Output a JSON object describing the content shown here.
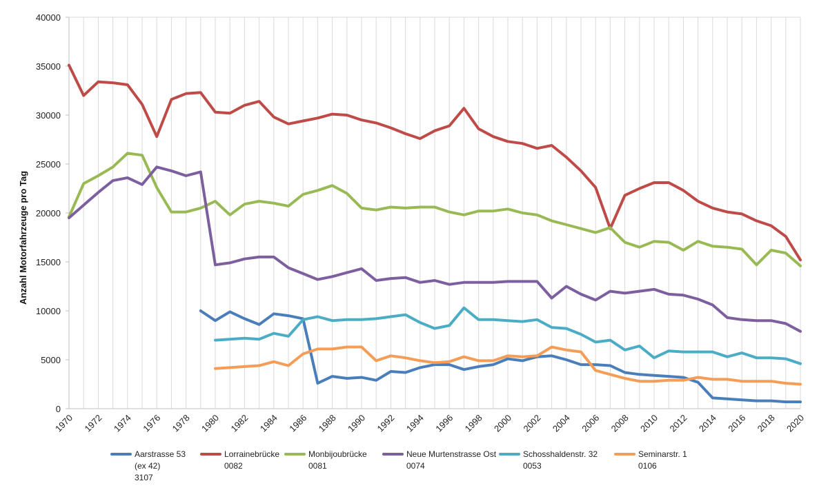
{
  "chart_data": {
    "type": "line",
    "title": "",
    "xlabel": "",
    "ylabel": "Anzahl Motorfahrzeuge pro Tag",
    "xlim": [
      1970,
      2020
    ],
    "ylim": [
      0,
      40000
    ],
    "yticks": [
      0,
      5000,
      10000,
      15000,
      20000,
      25000,
      30000,
      35000,
      40000
    ],
    "ytick_labels": [
      "0",
      "5000",
      "10000",
      "15000",
      "20000",
      "25000",
      "30000",
      "35000",
      "40000"
    ],
    "xticks": [
      1970,
      1972,
      1974,
      1976,
      1978,
      1980,
      1982,
      1984,
      1986,
      1988,
      1990,
      1992,
      1994,
      1996,
      1998,
      2000,
      2002,
      2004,
      2006,
      2008,
      2010,
      2012,
      2014,
      2016,
      2018,
      2020
    ],
    "xtick_labels": [
      "1970",
      "1972",
      "1974",
      "1976",
      "1978",
      "1980",
      "1982",
      "1984",
      "1986",
      "1988",
      "1990",
      "1992",
      "1994",
      "1996",
      "1998",
      "2000",
      "2002",
      "2004",
      "2006",
      "2008",
      "2010",
      "2012",
      "2014",
      "2016",
      "2018",
      "2020"
    ],
    "grid": "vertical",
    "legend_position": "bottom",
    "series": [
      {
        "name": "Aarstrasse 53",
        "legend_lines": [
          "Aarstrasse 53",
          "(ex 42)",
          "3107"
        ],
        "color": "#4a7ebb",
        "x": [
          1979,
          1980,
          1981,
          1982,
          1983,
          1984,
          1985,
          1986,
          1987,
          1988,
          1989,
          1990,
          1991,
          1992,
          1993,
          1994,
          1995,
          1996,
          1997,
          1998,
          1999,
          2000,
          2001,
          2002,
          2003,
          2004,
          2005,
          2006,
          2007,
          2008,
          2009,
          2010,
          2011,
          2012,
          2013,
          2014,
          2015,
          2016,
          2017,
          2018,
          2019,
          2020
        ],
        "values": [
          10000,
          9000,
          9900,
          9200,
          8600,
          9700,
          9500,
          9200,
          2600,
          3300,
          3100,
          3200,
          2900,
          3800,
          3700,
          4200,
          4500,
          4500,
          4000,
          4300,
          4500,
          5100,
          4900,
          5300,
          5400,
          5000,
          4500,
          4500,
          4400,
          3700,
          3500,
          3400,
          3300,
          3200,
          2700,
          1100,
          1000,
          900,
          800,
          800,
          700,
          700
        ]
      },
      {
        "name": "Lorrainebrücke",
        "legend_lines": [
          "Lorrainebrücke",
          "0082"
        ],
        "color": "#be4b48",
        "x": [
          1970,
          1971,
          1972,
          1973,
          1974,
          1975,
          1976,
          1977,
          1978,
          1979,
          1980,
          1981,
          1982,
          1983,
          1984,
          1985,
          1986,
          1987,
          1988,
          1989,
          1990,
          1991,
          1992,
          1993,
          1994,
          1995,
          1996,
          1997,
          1998,
          1999,
          2000,
          2001,
          2002,
          2003,
          2004,
          2005,
          2006,
          2007,
          2008,
          2009,
          2010,
          2011,
          2012,
          2013,
          2014,
          2015,
          2016,
          2017,
          2018,
          2019,
          2020
        ],
        "values": [
          35100,
          32000,
          33400,
          33300,
          33100,
          31100,
          27800,
          31600,
          32200,
          32300,
          30300,
          30200,
          31000,
          31400,
          29800,
          29100,
          29400,
          29700,
          30100,
          30000,
          29500,
          29200,
          28700,
          28100,
          27600,
          28400,
          28900,
          30700,
          28600,
          27800,
          27300,
          27100,
          26600,
          26900,
          25700,
          24300,
          22600,
          18400,
          21800,
          22500,
          23100,
          23100,
          22300,
          21200,
          20500,
          20100,
          19900,
          19200,
          18700,
          17600,
          15200
        ]
      },
      {
        "name": "Monbijoubrücke",
        "legend_lines": [
          "Monbijoubrücke",
          "0081"
        ],
        "color": "#98b954",
        "x": [
          1970,
          1971,
          1972,
          1973,
          1974,
          1975,
          1976,
          1977,
          1978,
          1979,
          1980,
          1981,
          1982,
          1983,
          1984,
          1985,
          1986,
          1987,
          1988,
          1989,
          1990,
          1991,
          1992,
          1993,
          1994,
          1995,
          1996,
          1997,
          1998,
          1999,
          2000,
          2001,
          2002,
          2003,
          2004,
          2005,
          2006,
          2007,
          2008,
          2009,
          2010,
          2011,
          2012,
          2013,
          2014,
          2015,
          2016,
          2017,
          2018,
          2019,
          2020
        ],
        "values": [
          19600,
          23000,
          23800,
          24700,
          26100,
          25900,
          22600,
          20100,
          20100,
          20500,
          21200,
          19800,
          20900,
          21200,
          21000,
          20700,
          21900,
          22300,
          22800,
          22000,
          20500,
          20300,
          20600,
          20500,
          20600,
          20600,
          20100,
          19800,
          20200,
          20200,
          20400,
          20000,
          19800,
          19200,
          18800,
          18400,
          18000,
          18500,
          17000,
          16500,
          17100,
          17000,
          16200,
          17100,
          16600,
          16500,
          16300,
          14700,
          16200,
          15900,
          14600
        ]
      },
      {
        "name": "Neue Murtenstrasse Ost",
        "legend_lines": [
          "Neue Murtenstrasse Ost",
          "0074"
        ],
        "color": "#7d5fa0",
        "x": [
          1970,
          1971,
          1972,
          1973,
          1974,
          1975,
          1976,
          1977,
          1978,
          1979,
          1980,
          1981,
          1982,
          1983,
          1984,
          1985,
          1986,
          1987,
          1988,
          1989,
          1990,
          1991,
          1992,
          1993,
          1994,
          1995,
          1996,
          1997,
          1998,
          1999,
          2000,
          2001,
          2002,
          2003,
          2004,
          2005,
          2006,
          2007,
          2008,
          2009,
          2010,
          2011,
          2012,
          2013,
          2014,
          2015,
          2016,
          2017,
          2018,
          2019,
          2020
        ],
        "values": [
          19500,
          20800,
          22100,
          23300,
          23600,
          22900,
          24700,
          24300,
          23800,
          24200,
          14700,
          14900,
          15300,
          15500,
          15500,
          14400,
          13800,
          13200,
          13500,
          13900,
          14300,
          13100,
          13300,
          13400,
          12900,
          13100,
          12700,
          12900,
          12900,
          12900,
          13000,
          13000,
          13000,
          11300,
          12500,
          11700,
          11100,
          12000,
          11800,
          12000,
          12200,
          11700,
          11600,
          11200,
          10600,
          9300,
          9100,
          9000,
          9000,
          8700,
          7900
        ]
      },
      {
        "name": "Schosshaldenstr. 32",
        "legend_lines": [
          "Schosshaldenstr. 32",
          "0053"
        ],
        "color": "#4bacc6",
        "x": [
          1980,
          1981,
          1982,
          1983,
          1984,
          1985,
          1986,
          1987,
          1988,
          1989,
          1990,
          1991,
          1992,
          1993,
          1994,
          1995,
          1996,
          1997,
          1998,
          1999,
          2000,
          2001,
          2002,
          2003,
          2004,
          2005,
          2006,
          2007,
          2008,
          2009,
          2010,
          2011,
          2012,
          2013,
          2014,
          2015,
          2016,
          2017,
          2018,
          2019,
          2020
        ],
        "values": [
          7000,
          7100,
          7200,
          7100,
          7700,
          7400,
          9100,
          9400,
          9000,
          9100,
          9100,
          9200,
          9400,
          9600,
          8800,
          8200,
          8500,
          10300,
          9100,
          9100,
          9000,
          8900,
          9100,
          8300,
          8200,
          7600,
          6800,
          7000,
          6000,
          6400,
          5200,
          5900,
          5800,
          5800,
          5800,
          5300,
          5700,
          5200,
          5200,
          5100,
          4600
        ]
      },
      {
        "name": "Seminarstr. 1",
        "legend_lines": [
          "Seminarstr. 1",
          "0106"
        ],
        "color": "#f59d56",
        "x": [
          1980,
          1981,
          1982,
          1983,
          1984,
          1985,
          1986,
          1987,
          1988,
          1989,
          1990,
          1991,
          1992,
          1993,
          1994,
          1995,
          1996,
          1997,
          1998,
          1999,
          2000,
          2001,
          2002,
          2003,
          2004,
          2005,
          2006,
          2007,
          2008,
          2009,
          2010,
          2011,
          2012,
          2013,
          2014,
          2015,
          2016,
          2017,
          2018,
          2019,
          2020
        ],
        "values": [
          4100,
          4200,
          4300,
          4400,
          4800,
          4400,
          5600,
          6100,
          6100,
          6300,
          6300,
          4900,
          5400,
          5200,
          4900,
          4700,
          4800,
          5300,
          4900,
          4900,
          5400,
          5300,
          5400,
          6300,
          6000,
          5800,
          3900,
          3500,
          3100,
          2800,
          2800,
          2900,
          2900,
          3200,
          3000,
          3000,
          2800,
          2800,
          2800,
          2600,
          2500
        ]
      }
    ]
  }
}
